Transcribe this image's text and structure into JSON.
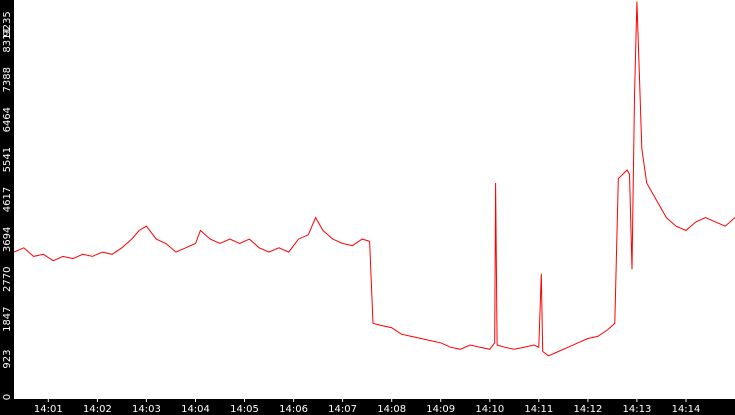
{
  "chart_data": {
    "type": "line",
    "title": "",
    "xlabel": "",
    "ylabel": "",
    "ylim": [
      0,
      9235
    ],
    "y_ticks": [
      "0",
      "923",
      "1847",
      "2770",
      "3694",
      "4617",
      "5541",
      "6464",
      "7388",
      "8311",
      "9235"
    ],
    "x_ticks": [
      "14:01",
      "14:02",
      "14:03",
      "14:04",
      "14:05",
      "14:06",
      "14:07",
      "14:08",
      "14:09",
      "14:10",
      "14:11",
      "14:12",
      "14:13",
      "14:14"
    ],
    "x_start_minute": 0.3,
    "x_end_minute": 15.0,
    "series_color": "#ff0000",
    "background": "#ffffff",
    "frame_color": "#000000",
    "grid": false,
    "series": [
      {
        "points": [
          [
            0.3,
            3400
          ],
          [
            0.5,
            3500
          ],
          [
            0.7,
            3300
          ],
          [
            0.9,
            3350
          ],
          [
            1.1,
            3200
          ],
          [
            1.3,
            3300
          ],
          [
            1.5,
            3250
          ],
          [
            1.7,
            3350
          ],
          [
            1.9,
            3300
          ],
          [
            2.1,
            3400
          ],
          [
            2.3,
            3350
          ],
          [
            2.5,
            3500
          ],
          [
            2.7,
            3700
          ],
          [
            2.85,
            3900
          ],
          [
            3.0,
            4000
          ],
          [
            3.2,
            3700
          ],
          [
            3.4,
            3600
          ],
          [
            3.6,
            3400
          ],
          [
            3.8,
            3500
          ],
          [
            4.0,
            3600
          ],
          [
            4.1,
            3900
          ],
          [
            4.3,
            3700
          ],
          [
            4.5,
            3600
          ],
          [
            4.7,
            3700
          ],
          [
            4.9,
            3600
          ],
          [
            5.1,
            3700
          ],
          [
            5.3,
            3500
          ],
          [
            5.5,
            3400
          ],
          [
            5.7,
            3500
          ],
          [
            5.9,
            3400
          ],
          [
            6.1,
            3700
          ],
          [
            6.3,
            3800
          ],
          [
            6.45,
            4200
          ],
          [
            6.6,
            3900
          ],
          [
            6.8,
            3700
          ],
          [
            7.0,
            3600
          ],
          [
            7.2,
            3550
          ],
          [
            7.4,
            3700
          ],
          [
            7.55,
            3650
          ],
          [
            7.62,
            1750
          ],
          [
            7.8,
            1700
          ],
          [
            8.0,
            1650
          ],
          [
            8.2,
            1500
          ],
          [
            8.4,
            1450
          ],
          [
            8.6,
            1400
          ],
          [
            8.8,
            1350
          ],
          [
            9.0,
            1300
          ],
          [
            9.2,
            1200
          ],
          [
            9.4,
            1150
          ],
          [
            9.6,
            1250
          ],
          [
            9.8,
            1200
          ],
          [
            10.0,
            1150
          ],
          [
            10.1,
            1300
          ],
          [
            10.12,
            5000
          ],
          [
            10.15,
            1250
          ],
          [
            10.3,
            1200
          ],
          [
            10.5,
            1150
          ],
          [
            10.7,
            1200
          ],
          [
            10.9,
            1250
          ],
          [
            11.0,
            1200
          ],
          [
            11.05,
            2900
          ],
          [
            11.08,
            1100
          ],
          [
            11.2,
            1000
          ],
          [
            11.4,
            1100
          ],
          [
            11.6,
            1200
          ],
          [
            11.8,
            1300
          ],
          [
            12.0,
            1400
          ],
          [
            12.2,
            1450
          ],
          [
            12.4,
            1600
          ],
          [
            12.55,
            1750
          ],
          [
            12.62,
            5100
          ],
          [
            12.8,
            5300
          ],
          [
            12.85,
            5200
          ],
          [
            12.9,
            3000
          ],
          [
            12.95,
            7000
          ],
          [
            13.0,
            9200
          ],
          [
            13.05,
            7500
          ],
          [
            13.1,
            5800
          ],
          [
            13.2,
            5000
          ],
          [
            13.4,
            4600
          ],
          [
            13.6,
            4200
          ],
          [
            13.8,
            4000
          ],
          [
            14.0,
            3900
          ],
          [
            14.2,
            4100
          ],
          [
            14.4,
            4200
          ],
          [
            14.6,
            4100
          ],
          [
            14.8,
            4000
          ],
          [
            15.0,
            4200
          ]
        ]
      }
    ]
  }
}
